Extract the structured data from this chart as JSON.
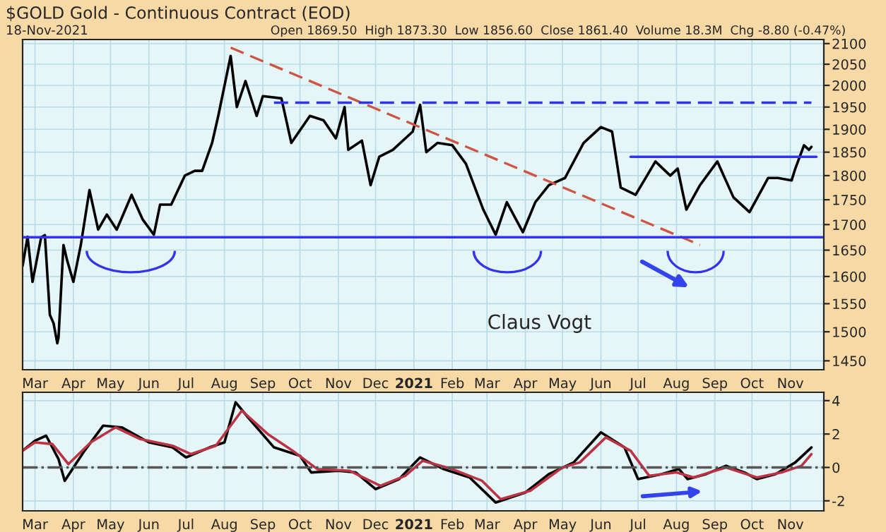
{
  "chart_data": [
    {
      "type": "line",
      "title": "$GOLD Gold - Continuous Contract (EOD)",
      "subtitle": "Open 1869.50  High 1873.30  Low 1856.60  Close 1861.40  Volume 18.3M  Chg -8.80 (-0.47%)",
      "annotations": [
        "18-Nov-2021",
        "Claus Vogt"
      ],
      "log": true,
      "grid": true,
      "xlim": [
        "2020-02-20",
        "2021-11-28"
      ],
      "xticks": [
        {
          "value": "2020-03-01",
          "label": "Mar"
        },
        {
          "value": "2020-04-01",
          "label": "Apr"
        },
        {
          "value": "2020-05-01",
          "label": "May"
        },
        {
          "value": "2020-06-01",
          "label": "Jun"
        },
        {
          "value": "2020-07-01",
          "label": "Jul"
        },
        {
          "value": "2020-08-01",
          "label": "Aug"
        },
        {
          "value": "2020-09-01",
          "label": "Sep"
        },
        {
          "value": "2020-10-01",
          "label": "Oct"
        },
        {
          "value": "2020-11-01",
          "label": "Nov"
        },
        {
          "value": "2020-12-01",
          "label": "Dec"
        },
        {
          "value": "2021-01-01",
          "label": "2021"
        },
        {
          "value": "2021-02-01",
          "label": "Feb"
        },
        {
          "value": "2021-03-01",
          "label": "Mar"
        },
        {
          "value": "2021-04-01",
          "label": "Apr"
        },
        {
          "value": "2021-05-01",
          "label": "May"
        },
        {
          "value": "2021-06-01",
          "label": "Jun"
        },
        {
          "value": "2021-07-01",
          "label": "Jul"
        },
        {
          "value": "2021-08-01",
          "label": "Aug"
        },
        {
          "value": "2021-09-01",
          "label": "Sep"
        },
        {
          "value": "2021-10-01",
          "label": "Oct"
        },
        {
          "value": "2021-11-01",
          "label": "Nov"
        }
      ],
      "ylim": [
        1435,
        2110
      ],
      "yticks": [
        1450,
        1500,
        1550,
        1600,
        1650,
        1700,
        1750,
        1800,
        1850,
        1900,
        1950,
        2000,
        2050,
        2100
      ],
      "ref_lines": [
        {
          "axis": "y",
          "value": 1675,
          "color": "#3333ee",
          "line_style": "solid"
        }
      ],
      "series": [
        {
          "color": "#000000",
          "line_style": "solid",
          "x": [
            "2020-02-20",
            "2020-02-24",
            "2020-02-28",
            "2020-03-06",
            "2020-03-09",
            "2020-03-13",
            "2020-03-16",
            "2020-03-19",
            "2020-03-20",
            "2020-03-24",
            "2020-03-27",
            "2020-04-01",
            "2020-04-07",
            "2020-04-14",
            "2020-04-21",
            "2020-04-28",
            "2020-05-06",
            "2020-05-18",
            "2020-05-27",
            "2020-06-05",
            "2020-06-10",
            "2020-06-19",
            "2020-06-30",
            "2020-07-08",
            "2020-07-14",
            "2020-07-22",
            "2020-07-27",
            "2020-07-31",
            "2020-08-06",
            "2020-08-11",
            "2020-08-18",
            "2020-08-27",
            "2020-09-01",
            "2020-09-16",
            "2020-09-24",
            "2020-10-09",
            "2020-10-20",
            "2020-10-30",
            "2020-11-06",
            "2020-11-09",
            "2020-11-20",
            "2020-11-27",
            "2020-12-04",
            "2020-12-15",
            "2020-12-31",
            "2021-01-06",
            "2021-01-11",
            "2021-01-20",
            "2021-02-01",
            "2021-02-12",
            "2021-02-26",
            "2021-03-08",
            "2021-03-17",
            "2021-03-30",
            "2021-04-09",
            "2021-04-20",
            "2021-05-03",
            "2021-05-18",
            "2021-06-01",
            "2021-06-10",
            "2021-06-17",
            "2021-06-29",
            "2021-07-15",
            "2021-07-27",
            "2021-08-02",
            "2021-08-06",
            "2021-08-09",
            "2021-08-20",
            "2021-09-03",
            "2021-09-16",
            "2021-09-29",
            "2021-10-14",
            "2021-10-22",
            "2021-11-02",
            "2021-11-05",
            "2021-11-12",
            "2021-11-16",
            "2021-11-18"
          ],
          "values": [
            1620,
            1676,
            1590,
            1675,
            1679,
            1530,
            1515,
            1480,
            1490,
            1660,
            1630,
            1590,
            1660,
            1770,
            1690,
            1720,
            1690,
            1760,
            1710,
            1680,
            1740,
            1740,
            1800,
            1810,
            1810,
            1870,
            1930,
            1985,
            2070,
            1950,
            2010,
            1930,
            1975,
            1970,
            1870,
            1930,
            1920,
            1880,
            1950,
            1855,
            1875,
            1780,
            1840,
            1855,
            1895,
            1955,
            1850,
            1870,
            1865,
            1825,
            1730,
            1680,
            1745,
            1685,
            1745,
            1780,
            1795,
            1870,
            1905,
            1895,
            1775,
            1760,
            1830,
            1800,
            1815,
            1765,
            1730,
            1780,
            1830,
            1755,
            1725,
            1795,
            1795,
            1790,
            1815,
            1865,
            1855,
            1861.4
          ]
        },
        {
          "color": "#cc5544",
          "line_style": "dashed",
          "x": [
            "2020-08-06",
            "2021-08-20"
          ],
          "values": [
            2090,
            1660
          ]
        },
        {
          "color": "#3333ee",
          "line_style": "dashed",
          "x": [
            "2020-09-10",
            "2021-11-18"
          ],
          "values": [
            1960,
            1960
          ]
        },
        {
          "color": "#3333ee",
          "line_style": "solid",
          "x": [
            "2021-06-25",
            "2021-11-22"
          ],
          "values": [
            1840,
            1840
          ]
        }
      ]
    },
    {
      "type": "line",
      "grid": true,
      "xlim": [
        "2020-02-20",
        "2021-11-28"
      ],
      "xticks": [
        {
          "value": "2020-03-01",
          "label": "Mar"
        },
        {
          "value": "2020-04-01",
          "label": "Apr"
        },
        {
          "value": "2020-05-01",
          "label": "May"
        },
        {
          "value": "2020-06-01",
          "label": "Jun"
        },
        {
          "value": "2020-07-01",
          "label": "Jul"
        },
        {
          "value": "2020-08-01",
          "label": "Aug"
        },
        {
          "value": "2020-09-01",
          "label": "Sep"
        },
        {
          "value": "2020-10-01",
          "label": "Oct"
        },
        {
          "value": "2020-11-01",
          "label": "Nov"
        },
        {
          "value": "2020-12-01",
          "label": "Dec"
        },
        {
          "value": "2021-01-01",
          "label": "2021"
        },
        {
          "value": "2021-02-01",
          "label": "Feb"
        },
        {
          "value": "2021-03-01",
          "label": "Mar"
        },
        {
          "value": "2021-04-01",
          "label": "Apr"
        },
        {
          "value": "2021-05-01",
          "label": "May"
        },
        {
          "value": "2021-06-01",
          "label": "Jun"
        },
        {
          "value": "2021-07-01",
          "label": "Jul"
        },
        {
          "value": "2021-08-01",
          "label": "Aug"
        },
        {
          "value": "2021-09-01",
          "label": "Sep"
        },
        {
          "value": "2021-10-01",
          "label": "Oct"
        },
        {
          "value": "2021-11-01",
          "label": "Nov"
        }
      ],
      "ylim": [
        -2.6,
        4.5
      ],
      "yticks": [
        {
          "value": -2,
          "label": "-2"
        },
        0,
        2,
        4
      ],
      "ref_lines": [
        {
          "axis": "y",
          "value": 0,
          "color": "#555555",
          "line_style": "dashdot"
        }
      ],
      "series": [
        {
          "color": "#000000",
          "line_style": "solid",
          "x": [
            "2020-02-20",
            "2020-03-01",
            "2020-03-10",
            "2020-03-20",
            "2020-03-25",
            "2020-04-10",
            "2020-04-25",
            "2020-05-10",
            "2020-06-01",
            "2020-06-20",
            "2020-07-01",
            "2020-07-20",
            "2020-08-01",
            "2020-08-10",
            "2020-08-20",
            "2020-09-10",
            "2020-10-01",
            "2020-10-10",
            "2020-11-01",
            "2020-11-15",
            "2020-12-01",
            "2020-12-20",
            "2021-01-06",
            "2021-01-25",
            "2021-02-15",
            "2021-03-08",
            "2021-04-01",
            "2021-04-20",
            "2021-05-10",
            "2021-06-01",
            "2021-06-20",
            "2021-07-01",
            "2021-07-20",
            "2021-08-03",
            "2021-08-10",
            "2021-08-25",
            "2021-09-10",
            "2021-09-25",
            "2021-10-05",
            "2021-10-20",
            "2021-11-05",
            "2021-11-18"
          ],
          "values": [
            1.0,
            1.6,
            1.9,
            0.5,
            -0.8,
            1.0,
            2.5,
            2.4,
            1.5,
            1.2,
            0.6,
            1.2,
            1.5,
            3.9,
            3.0,
            1.2,
            0.7,
            -0.3,
            -0.2,
            -0.3,
            -1.3,
            -0.7,
            0.6,
            -0.1,
            -0.6,
            -2.1,
            -1.5,
            -0.4,
            0.3,
            2.1,
            1.2,
            -0.7,
            -0.4,
            -0.1,
            -0.7,
            -0.4,
            0.1,
            -0.3,
            -0.7,
            -0.4,
            0.3,
            1.2
          ]
        },
        {
          "color": "#bb3344",
          "line_style": "solid",
          "x": [
            "2020-02-20",
            "2020-03-01",
            "2020-03-15",
            "2020-03-28",
            "2020-04-15",
            "2020-05-05",
            "2020-05-25",
            "2020-06-20",
            "2020-07-05",
            "2020-07-25",
            "2020-08-15",
            "2020-09-05",
            "2020-09-25",
            "2020-10-15",
            "2020-11-10",
            "2020-12-05",
            "2020-12-25",
            "2021-01-08",
            "2021-02-01",
            "2021-02-25",
            "2021-03-12",
            "2021-04-05",
            "2021-05-01",
            "2021-05-15",
            "2021-06-05",
            "2021-06-25",
            "2021-07-10",
            "2021-08-01",
            "2021-08-15",
            "2021-09-10",
            "2021-10-05",
            "2021-10-25",
            "2021-11-10",
            "2021-11-18"
          ],
          "values": [
            1.0,
            1.5,
            1.4,
            0.2,
            1.5,
            2.4,
            1.7,
            1.3,
            0.8,
            1.3,
            3.4,
            2.0,
            1.0,
            -0.1,
            -0.2,
            -1.1,
            -0.5,
            0.4,
            -0.1,
            -0.8,
            -1.9,
            -1.4,
            0.0,
            0.3,
            1.8,
            1.0,
            -0.5,
            -0.3,
            -0.6,
            0.0,
            -0.6,
            -0.3,
            0.1,
            0.8
          ]
        }
      ]
    }
  ]
}
